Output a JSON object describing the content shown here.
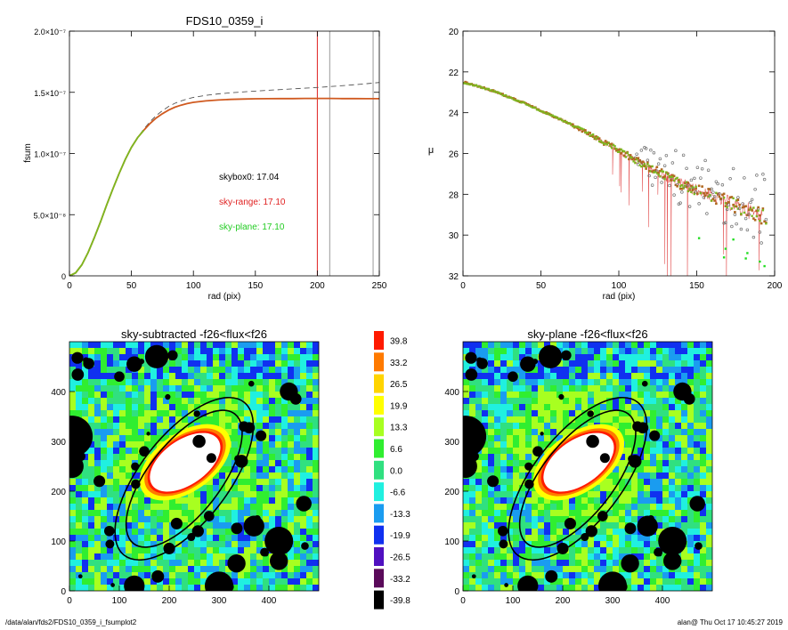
{
  "chart_data": [
    {
      "type": "line",
      "title": "FDS10_0359_i",
      "xlabel": "rad (pix)",
      "ylabel": "fsum",
      "xlim": [
        0,
        250
      ],
      "ylim": [
        0,
        2e-07
      ],
      "xticks": [
        "0",
        "50",
        "100",
        "150",
        "200",
        "250"
      ],
      "yticks": [
        "0",
        "5.0×10⁻⁸",
        "1.0×10⁻⁷",
        "1.5×10⁻⁷",
        "2.0×10⁻⁷"
      ],
      "series": [
        {
          "style": "dashed",
          "color": "#555555",
          "x": [
            0,
            5,
            10,
            15,
            20,
            25,
            30,
            35,
            40,
            45,
            50,
            55,
            60,
            65,
            70,
            75,
            80,
            85,
            90,
            95,
            100,
            110,
            120,
            130,
            140,
            150,
            160,
            170,
            180,
            190,
            200,
            210,
            220,
            230,
            240,
            250
          ],
          "y": [
            0,
            2.5e-09,
            9e-09,
            1.9e-08,
            3.1e-08,
            4.4e-08,
            5.8e-08,
            7.1e-08,
            8.35e-08,
            9.5e-08,
            1.05e-07,
            1.13e-07,
            1.2e-07,
            1.26e-07,
            1.31e-07,
            1.35e-07,
            1.385e-07,
            1.41e-07,
            1.43e-07,
            1.445e-07,
            1.458e-07,
            1.475e-07,
            1.487e-07,
            1.496e-07,
            1.503e-07,
            1.51e-07,
            1.516e-07,
            1.522e-07,
            1.528e-07,
            1.534e-07,
            1.54e-07,
            1.547e-07,
            1.554e-07,
            1.562e-07,
            1.571e-07,
            1.58e-07
          ]
        },
        {
          "style": "solid",
          "color": "#d05a20",
          "x": [
            0,
            5,
            10,
            15,
            20,
            25,
            30,
            35,
            40,
            45,
            50,
            55,
            60,
            65,
            70,
            75,
            80,
            85,
            90,
            95,
            100,
            110,
            120,
            130,
            140,
            150,
            160,
            170,
            180,
            190,
            200,
            210,
            220,
            230,
            240,
            250
          ],
          "y": [
            0,
            2.5e-09,
            9e-09,
            1.9e-08,
            3.1e-08,
            4.4e-08,
            5.8e-08,
            7.1e-08,
            8.35e-08,
            9.5e-08,
            1.05e-07,
            1.13e-07,
            1.19e-07,
            1.245e-07,
            1.29e-07,
            1.325e-07,
            1.355e-07,
            1.378e-07,
            1.395e-07,
            1.408e-07,
            1.418e-07,
            1.43e-07,
            1.437e-07,
            1.442e-07,
            1.445e-07,
            1.447e-07,
            1.448e-07,
            1.449e-07,
            1.449e-07,
            1.45e-07,
            1.45e-07,
            1.45e-07,
            1.449e-07,
            1.449e-07,
            1.448e-07,
            1.448e-07
          ]
        },
        {
          "style": "solid",
          "color": "#7cb820",
          "x": [
            0,
            5,
            10,
            15,
            20,
            25,
            30,
            35,
            40,
            45,
            50,
            55,
            60
          ],
          "y": [
            0,
            2.5e-09,
            9e-09,
            1.9e-08,
            3.1e-08,
            4.4e-08,
            5.8e-08,
            7.1e-08,
            8.35e-08,
            9.5e-08,
            1.05e-07,
            1.13e-07,
            1.19e-07
          ]
        }
      ],
      "vlines": [
        {
          "x": 200,
          "color": "#e02020"
        },
        {
          "x": 210,
          "color": "#999999"
        },
        {
          "x": 245,
          "color": "#999999"
        }
      ],
      "annotations": [
        {
          "text": "skybox0: 17.04",
          "color": "#000000"
        },
        {
          "text": "sky-range: 17.10",
          "color": "#e02020"
        },
        {
          "text": "sky-plane: 17.10",
          "color": "#22cc22"
        }
      ]
    },
    {
      "type": "scatter",
      "title": "",
      "xlabel": "rad (pix)",
      "ylabel": "μ",
      "xlim": [
        0,
        200
      ],
      "ylim": [
        32,
        20
      ],
      "inverted_y": true,
      "xticks": [
        "0",
        "50",
        "100",
        "150",
        "200"
      ],
      "yticks": [
        "20",
        "22",
        "24",
        "26",
        "28",
        "30",
        "32"
      ],
      "profile": {
        "x": [
          0,
          10,
          20,
          30,
          40,
          50,
          60,
          70,
          80,
          90,
          100,
          110,
          120,
          130,
          140,
          150,
          160,
          170,
          180,
          190,
          200
        ],
        "y": [
          22.5,
          22.7,
          22.95,
          23.25,
          23.55,
          23.9,
          24.25,
          24.6,
          25.0,
          25.45,
          25.85,
          26.3,
          26.7,
          27.1,
          27.5,
          27.8,
          28.1,
          28.4,
          28.7,
          29.0,
          29.3
        ]
      },
      "colors": {
        "green": "#7cb820",
        "orange": "#b06820",
        "red": "#e04040",
        "gray": "#707070"
      }
    },
    {
      "type": "heatmap",
      "title": "sky-subtracted -f26<flux<f26",
      "xlim": [
        0,
        500
      ],
      "ylim": [
        0,
        500
      ],
      "xticks": [
        "0",
        "100",
        "200",
        "300",
        "400"
      ],
      "yticks": [
        "0",
        "100",
        "200",
        "300",
        "400"
      ],
      "ellipse_center": [
        230,
        225
      ],
      "ellipse_axes": [
        [
          165,
          72
        ],
        [
          195,
          88
        ]
      ],
      "ellipse_angle_deg": 52
    },
    {
      "type": "heatmap",
      "title": "sky-plane -f26<flux<f26",
      "xlim": [
        0,
        500
      ],
      "ylim": [
        0,
        500
      ],
      "xticks": [
        "0",
        "100",
        "200",
        "300",
        "400"
      ],
      "yticks": [
        "0",
        "100",
        "200",
        "300",
        "400"
      ],
      "ellipse_center": [
        230,
        225
      ],
      "ellipse_axes": [
        [
          165,
          72
        ],
        [
          195,
          88
        ]
      ],
      "ellipse_angle_deg": 52
    },
    {
      "type": "colorbar",
      "levels": [
        {
          "label": "39.8",
          "color": "#ff1a00"
        },
        {
          "label": "33.2",
          "color": "#ff7a00"
        },
        {
          "label": "26.5",
          "color": "#ffd400"
        },
        {
          "label": "19.9",
          "color": "#ffff00"
        },
        {
          "label": "13.3",
          "color": "#a8ff20"
        },
        {
          "label": "6.6",
          "color": "#30ee30"
        },
        {
          "label": "0.0",
          "color": "#30e080"
        },
        {
          "label": "-6.6",
          "color": "#20f0e0"
        },
        {
          "label": "-13.3",
          "color": "#1a9cf0"
        },
        {
          "label": "-19.9",
          "color": "#1030f0"
        },
        {
          "label": "-26.5",
          "color": "#5010c0"
        },
        {
          "label": "-33.2",
          "color": "#5a0a5a"
        },
        {
          "label": "-39.8",
          "color": "#000000"
        }
      ]
    }
  ],
  "footer": {
    "left": "/data/alan/fds2/FDS10_0359_i_fsumplot2",
    "right": "alan@  Thu Oct 17 10:45:27 2019"
  }
}
